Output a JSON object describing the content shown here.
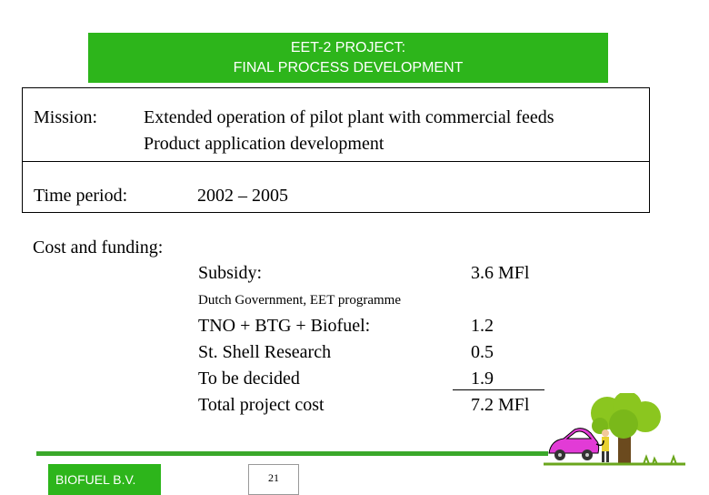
{
  "banner": {
    "line1": "EET-2 PROJECT:",
    "line2": "FINAL PROCESS DEVELOPMENT"
  },
  "mission": {
    "label": "Mission:",
    "lines": [
      "Extended operation of pilot plant with commercial feeds",
      "Product application development"
    ]
  },
  "time_period": {
    "label": "Time period:",
    "value": "2002 – 2005"
  },
  "cost": {
    "label": "Cost and funding:",
    "subsidy_label": "Subsidy:",
    "subsidy_value": "3.6 MFl",
    "subsidy_note": "Dutch Government, EET programme",
    "rows": [
      {
        "label": "TNO + BTG + Biofuel:",
        "value": "1.2"
      },
      {
        "label": "St. Shell Research",
        "value": "0.5"
      },
      {
        "label": "To be decided",
        "value": "1.9"
      },
      {
        "label": "Total project cost",
        "value": "7.2 MFl"
      }
    ]
  },
  "footer": {
    "company": "BIOFUEL B.V.",
    "page_number": "21"
  },
  "colors": {
    "banner_green": "#2db51b",
    "car_pink": "#e23bd6",
    "tree_green": "#8bc61f"
  },
  "clipart": "car-refuelling-at-tree-icon"
}
